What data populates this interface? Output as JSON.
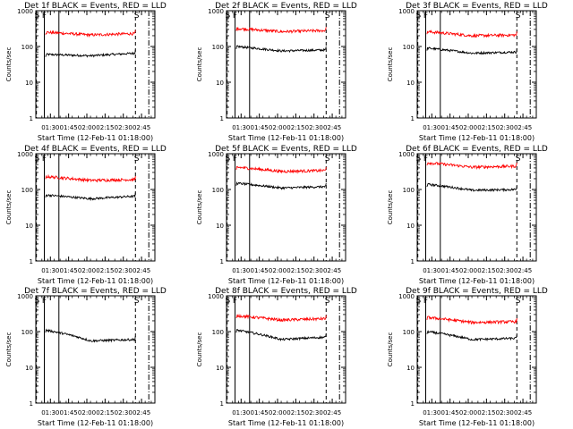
{
  "colors": {
    "events": "#000000",
    "lld": "#ff0000",
    "axes": "#000000",
    "background": "#ffffff"
  },
  "chart_data": [
    {
      "type": "line",
      "title": "Det 1f  BLACK = Events, RED = LLD",
      "xlabel": "Start Time (12-Feb-11 01:18:00)",
      "ylabel": "Counts/sec",
      "yscale": "log",
      "ylim": [
        1,
        1000
      ],
      "xlim": [
        "01:18",
        "02:56"
      ],
      "x_ticks": [
        "01:30",
        "01:45",
        "02:00",
        "02:15",
        "02:30",
        "02:45"
      ],
      "y_ticks": [
        "1",
        "10",
        "100",
        "1000"
      ],
      "markers": [
        {
          "label": "S",
          "time": "01:19"
        },
        {
          "label": "F",
          "time": "01:25"
        },
        {
          "label": "S",
          "time": "02:41"
        }
      ],
      "data_start": "01:26",
      "data_end": "02:40",
      "series": [
        {
          "name": "Events",
          "start": 60,
          "dip": 55,
          "end": 65
        },
        {
          "name": "LLD",
          "start": 250,
          "dip": 210,
          "end": 230
        }
      ]
    },
    {
      "type": "line",
      "title": "Det 2f  BLACK = Events, RED = LLD",
      "xlabel": "Start Time (12-Feb-11 01:18:00)",
      "ylabel": "Counts/sec",
      "yscale": "log",
      "ylim": [
        1,
        1000
      ],
      "xlim": [
        "01:18",
        "02:56"
      ],
      "x_ticks": [
        "01:30",
        "01:45",
        "02:00",
        "02:15",
        "02:30",
        "02:45"
      ],
      "y_ticks": [
        "1",
        "10",
        "100",
        "1000"
      ],
      "markers": [
        {
          "label": "S",
          "time": "01:19"
        },
        {
          "label": "F",
          "time": "01:25"
        },
        {
          "label": "S",
          "time": "02:41"
        }
      ],
      "data_start": "01:26",
      "data_end": "02:40",
      "series": [
        {
          "name": "Events",
          "start": 100,
          "dip": 75,
          "end": 80
        },
        {
          "name": "LLD",
          "start": 320,
          "dip": 260,
          "end": 280
        }
      ]
    },
    {
      "type": "line",
      "title": "Det 3f  BLACK = Events, RED = LLD",
      "xlabel": "Start Time (12-Feb-11 01:18:00)",
      "ylabel": "Counts/sec",
      "yscale": "log",
      "ylim": [
        1,
        1000
      ],
      "xlim": [
        "01:18",
        "02:56"
      ],
      "x_ticks": [
        "01:30",
        "01:45",
        "02:00",
        "02:15",
        "02:30",
        "02:45"
      ],
      "y_ticks": [
        "1",
        "10",
        "100",
        "1000"
      ],
      "markers": [
        {
          "label": "S",
          "time": "01:19"
        },
        {
          "label": "F",
          "time": "01:25"
        },
        {
          "label": "S",
          "time": "02:41"
        }
      ],
      "data_start": "01:26",
      "data_end": "02:40",
      "series": [
        {
          "name": "Events",
          "start": 90,
          "dip": 65,
          "end": 70
        },
        {
          "name": "LLD",
          "start": 260,
          "dip": 200,
          "end": 210
        }
      ]
    },
    {
      "type": "line",
      "title": "Det 4f  BLACK = Events, RED = LLD",
      "xlabel": "Start Time (12-Feb-11 01:18:00)",
      "ylabel": "Counts/sec",
      "yscale": "log",
      "ylim": [
        1,
        1000
      ],
      "xlim": [
        "01:18",
        "02:56"
      ],
      "x_ticks": [
        "01:30",
        "01:45",
        "02:00",
        "02:15",
        "02:30",
        "02:45"
      ],
      "y_ticks": [
        "1",
        "10",
        "100",
        "1000"
      ],
      "markers": [
        {
          "label": "S",
          "time": "01:19"
        },
        {
          "label": "F",
          "time": "01:25"
        },
        {
          "label": "S",
          "time": "02:41"
        }
      ],
      "data_start": "01:26",
      "data_end": "02:40",
      "series": [
        {
          "name": "Events",
          "start": 70,
          "dip": 55,
          "end": 65
        },
        {
          "name": "LLD",
          "start": 230,
          "dip": 180,
          "end": 190
        }
      ]
    },
    {
      "type": "line",
      "title": "Det 5f  BLACK = Events, RED = LLD",
      "xlabel": "Start Time (12-Feb-11 01:18:00)",
      "ylabel": "Counts/sec",
      "yscale": "log",
      "ylim": [
        1,
        1000
      ],
      "xlim": [
        "01:18",
        "02:56"
      ],
      "x_ticks": [
        "01:30",
        "01:45",
        "02:00",
        "02:15",
        "02:30",
        "02:45"
      ],
      "y_ticks": [
        "1",
        "10",
        "100",
        "1000"
      ],
      "markers": [
        {
          "label": "S",
          "time": "01:19"
        },
        {
          "label": "F",
          "time": "01:25"
        },
        {
          "label": "S",
          "time": "02:41"
        }
      ],
      "data_start": "01:26",
      "data_end": "02:40",
      "series": [
        {
          "name": "Events",
          "start": 150,
          "dip": 110,
          "end": 120
        },
        {
          "name": "LLD",
          "start": 420,
          "dip": 320,
          "end": 340
        }
      ]
    },
    {
      "type": "line",
      "title": "Det 6f  BLACK = Events, RED = LLD",
      "xlabel": "Start Time (12-Feb-11 01:18:00)",
      "ylabel": "Counts/sec",
      "yscale": "log",
      "ylim": [
        1,
        1000
      ],
      "xlim": [
        "01:18",
        "02:56"
      ],
      "x_ticks": [
        "01:30",
        "01:45",
        "02:00",
        "02:15",
        "02:30",
        "02:45"
      ],
      "y_ticks": [
        "1",
        "10",
        "100",
        "1000"
      ],
      "markers": [
        {
          "label": "S",
          "time": "01:19"
        },
        {
          "label": "F",
          "time": "01:25"
        },
        {
          "label": "S",
          "time": "02:41"
        }
      ],
      "data_start": "01:26",
      "data_end": "02:40",
      "series": [
        {
          "name": "Events",
          "start": 140,
          "dip": 95,
          "end": 100
        },
        {
          "name": "LLD",
          "start": 560,
          "dip": 420,
          "end": 450
        }
      ]
    },
    {
      "type": "line",
      "title": "Det 7f  BLACK = Events, RED = LLD",
      "xlabel": "Start Time (12-Feb-11 01:18:00)",
      "ylabel": "Counts/sec",
      "yscale": "log",
      "ylim": [
        1,
        1000
      ],
      "xlim": [
        "01:18",
        "02:56"
      ],
      "x_ticks": [
        "01:30",
        "01:45",
        "02:00",
        "02:15",
        "02:30",
        "02:45"
      ],
      "y_ticks": [
        "1",
        "10",
        "100",
        "1000"
      ],
      "markers": [
        {
          "label": "S",
          "time": "01:19"
        },
        {
          "label": "F",
          "time": "01:25"
        },
        {
          "label": "S",
          "time": "02:41"
        }
      ],
      "data_start": "01:26",
      "data_end": "02:40",
      "series": [
        {
          "name": "Events",
          "start": 110,
          "dip": 55,
          "end": 60
        }
      ]
    },
    {
      "type": "line",
      "title": "Det 8f  BLACK = Events, RED = LLD",
      "xlabel": "Start Time (12-Feb-11 01:18:00)",
      "ylabel": "Counts/sec",
      "yscale": "log",
      "ylim": [
        1,
        1000
      ],
      "xlim": [
        "01:18",
        "02:56"
      ],
      "x_ticks": [
        "01:30",
        "01:45",
        "02:00",
        "02:15",
        "02:30",
        "02:45"
      ],
      "y_ticks": [
        "1",
        "10",
        "100",
        "1000"
      ],
      "markers": [
        {
          "label": "S",
          "time": "01:19"
        },
        {
          "label": "F",
          "time": "01:25"
        },
        {
          "label": "S",
          "time": "02:41"
        }
      ],
      "data_start": "01:26",
      "data_end": "02:40",
      "series": [
        {
          "name": "Events",
          "start": 110,
          "dip": 60,
          "end": 70
        },
        {
          "name": "LLD",
          "start": 280,
          "dip": 210,
          "end": 230
        }
      ]
    },
    {
      "type": "line",
      "title": "Det 9f  BLACK = Events, RED = LLD",
      "xlabel": "Start Time (12-Feb-11 01:18:00)",
      "ylabel": "Counts/sec",
      "yscale": "log",
      "ylim": [
        1,
        1000
      ],
      "xlim": [
        "01:18",
        "02:56"
      ],
      "x_ticks": [
        "01:30",
        "01:45",
        "02:00",
        "02:15",
        "02:30",
        "02:45"
      ],
      "y_ticks": [
        "1",
        "10",
        "100",
        "1000"
      ],
      "markers": [
        {
          "label": "S",
          "time": "01:19"
        },
        {
          "label": "F",
          "time": "01:25"
        },
        {
          "label": "S",
          "time": "02:41"
        }
      ],
      "data_start": "01:26",
      "data_end": "02:40",
      "series": [
        {
          "name": "Events",
          "start": 100,
          "dip": 60,
          "end": 65
        },
        {
          "name": "LLD",
          "start": 250,
          "dip": 180,
          "end": 190
        }
      ]
    }
  ]
}
